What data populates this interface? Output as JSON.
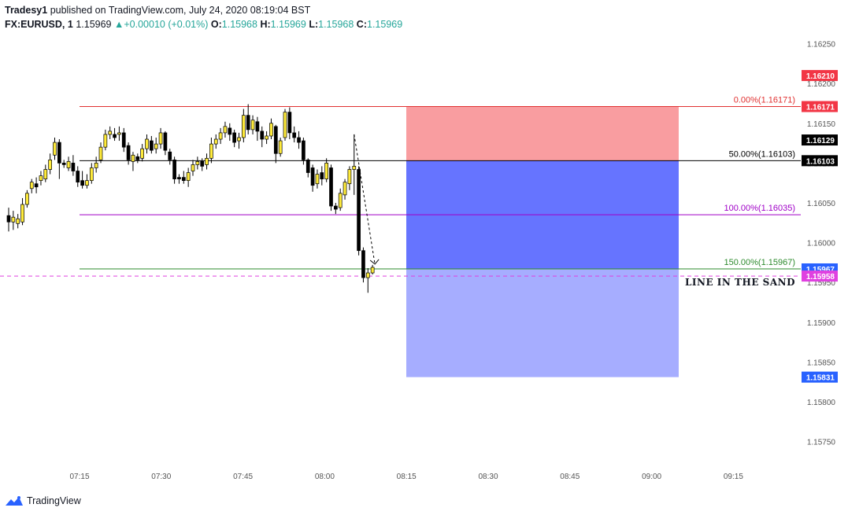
{
  "header": {
    "publisher": "Tradesy1",
    "published_text": " published on TradingView.com, July 24, 2020 08:19:04 BST",
    "symbol": "FX:EURUSD, 1",
    "last": "1.15969",
    "change_arrow": "▲",
    "change": "+0.00010 (+0.01%)",
    "o_label": "O:",
    "o_value": "1.15968",
    "h_label": "H:",
    "h_value": "1.15969",
    "l_label": "L:",
    "l_value": "1.15968",
    "c_label": "C:",
    "c_value": "1.15969"
  },
  "footer": {
    "brand": "TradingView",
    "logo_icon": "tradingview-logo-icon"
  },
  "colors": {
    "up_candle": "#ffeb3b",
    "down_candle": "#000000",
    "stop_zone": "#f77c80",
    "target_zone": "#3b4dff",
    "target_zone_light": "#7c86ff"
  },
  "chart_data": {
    "type": "candlestick",
    "symbol": "FX:EURUSD",
    "interval": "1",
    "y_ticks": [
      "1.16250",
      "1.16200",
      "1.16150",
      "1.16100",
      "1.16050",
      "1.16000",
      "1.15950",
      "1.15900",
      "1.15850",
      "1.15800",
      "1.15750"
    ],
    "x_ticks": [
      "07:15",
      "07:30",
      "07:45",
      "08:00",
      "08:15",
      "08:30",
      "08:45",
      "09:00",
      "09:15"
    ],
    "ylim": [
      1.15718,
      1.16298
    ],
    "candles": [
      {
        "o": 1.16034,
        "c": 1.16026,
        "h": 1.16044,
        "l": 1.16014
      },
      {
        "o": 1.16026,
        "c": 1.16032,
        "h": 1.1604,
        "l": 1.16016
      },
      {
        "o": 1.16024,
        "c": 1.1603,
        "h": 1.16036,
        "l": 1.16018
      },
      {
        "o": 1.16026,
        "c": 1.16048,
        "h": 1.16056,
        "l": 1.16022
      },
      {
        "o": 1.16048,
        "c": 1.16062,
        "h": 1.16066,
        "l": 1.16044
      },
      {
        "o": 1.16068,
        "c": 1.16076,
        "h": 1.1608,
        "l": 1.16062
      },
      {
        "o": 1.16074,
        "c": 1.1607,
        "h": 1.16082,
        "l": 1.16062
      },
      {
        "o": 1.16078,
        "c": 1.16084,
        "h": 1.1609,
        "l": 1.16072
      },
      {
        "o": 1.1608,
        "c": 1.16092,
        "h": 1.16098,
        "l": 1.16076
      },
      {
        "o": 1.16092,
        "c": 1.16104,
        "h": 1.16112,
        "l": 1.16086
      },
      {
        "o": 1.1611,
        "c": 1.16126,
        "h": 1.16132,
        "l": 1.16104
      },
      {
        "o": 1.16126,
        "c": 1.161,
        "h": 1.1613,
        "l": 1.1608
      },
      {
        "o": 1.161,
        "c": 1.16098,
        "h": 1.16104,
        "l": 1.16094
      },
      {
        "o": 1.16094,
        "c": 1.16102,
        "h": 1.16108,
        "l": 1.1609
      },
      {
        "o": 1.161,
        "c": 1.1609,
        "h": 1.1611,
        "l": 1.16084
      },
      {
        "o": 1.1609,
        "c": 1.16076,
        "h": 1.16096,
        "l": 1.1607
      },
      {
        "o": 1.16078,
        "c": 1.16072,
        "h": 1.1609,
        "l": 1.16068
      },
      {
        "o": 1.16072,
        "c": 1.16078,
        "h": 1.16086,
        "l": 1.16068
      },
      {
        "o": 1.16078,
        "c": 1.16094,
        "h": 1.161,
        "l": 1.16074
      },
      {
        "o": 1.16094,
        "c": 1.161,
        "h": 1.16108,
        "l": 1.16088
      },
      {
        "o": 1.16104,
        "c": 1.1612,
        "h": 1.16126,
        "l": 1.161
      },
      {
        "o": 1.1612,
        "c": 1.16136,
        "h": 1.16142,
        "l": 1.16116
      },
      {
        "o": 1.16136,
        "c": 1.1614,
        "h": 1.16146,
        "l": 1.1613
      },
      {
        "o": 1.16136,
        "c": 1.16132,
        "h": 1.16144,
        "l": 1.16128
      },
      {
        "o": 1.16136,
        "c": 1.16138,
        "h": 1.16146,
        "l": 1.16128
      },
      {
        "o": 1.16138,
        "c": 1.1612,
        "h": 1.16144,
        "l": 1.16114
      },
      {
        "o": 1.16122,
        "c": 1.16104,
        "h": 1.16126,
        "l": 1.16098
      },
      {
        "o": 1.16102,
        "c": 1.1611,
        "h": 1.16114,
        "l": 1.1609
      },
      {
        "o": 1.16108,
        "c": 1.16104,
        "h": 1.16112,
        "l": 1.161
      },
      {
        "o": 1.16106,
        "c": 1.16118,
        "h": 1.16124,
        "l": 1.16102
      },
      {
        "o": 1.16118,
        "c": 1.1613,
        "h": 1.16136,
        "l": 1.16112
      },
      {
        "o": 1.16128,
        "c": 1.16116,
        "h": 1.16134,
        "l": 1.16112
      },
      {
        "o": 1.16118,
        "c": 1.16124,
        "h": 1.16132,
        "l": 1.16112
      },
      {
        "o": 1.16124,
        "c": 1.16138,
        "h": 1.16144,
        "l": 1.16118
      },
      {
        "o": 1.16138,
        "c": 1.16116,
        "h": 1.1614,
        "l": 1.1611
      },
      {
        "o": 1.16114,
        "c": 1.16104,
        "h": 1.16118,
        "l": 1.16098
      },
      {
        "o": 1.16104,
        "c": 1.1608,
        "h": 1.16108,
        "l": 1.16074
      },
      {
        "o": 1.16082,
        "c": 1.1608,
        "h": 1.16086,
        "l": 1.16074
      },
      {
        "o": 1.16082,
        "c": 1.16078,
        "h": 1.1609,
        "l": 1.16074
      },
      {
        "o": 1.16078,
        "c": 1.16088,
        "h": 1.16094,
        "l": 1.1607
      },
      {
        "o": 1.1609,
        "c": 1.16098,
        "h": 1.16104,
        "l": 1.16084
      },
      {
        "o": 1.16098,
        "c": 1.16102,
        "h": 1.16108,
        "l": 1.16092
      },
      {
        "o": 1.16102,
        "c": 1.16096,
        "h": 1.16106,
        "l": 1.1609
      },
      {
        "o": 1.16098,
        "c": 1.16106,
        "h": 1.16112,
        "l": 1.16092
      },
      {
        "o": 1.16106,
        "c": 1.16124,
        "h": 1.16132,
        "l": 1.161
      },
      {
        "o": 1.16124,
        "c": 1.1613,
        "h": 1.16136,
        "l": 1.16118
      },
      {
        "o": 1.1613,
        "c": 1.16138,
        "h": 1.16144,
        "l": 1.16124
      },
      {
        "o": 1.16138,
        "c": 1.16146,
        "h": 1.16152,
        "l": 1.16132
      },
      {
        "o": 1.16144,
        "c": 1.16136,
        "h": 1.1615,
        "l": 1.16128
      },
      {
        "o": 1.16138,
        "c": 1.16126,
        "h": 1.16142,
        "l": 1.1612
      },
      {
        "o": 1.16128,
        "c": 1.16132,
        "h": 1.16138,
        "l": 1.16118
      },
      {
        "o": 1.16132,
        "c": 1.1616,
        "h": 1.16168,
        "l": 1.16126
      },
      {
        "o": 1.1616,
        "c": 1.16142,
        "h": 1.16174,
        "l": 1.16136
      },
      {
        "o": 1.16142,
        "c": 1.16154,
        "h": 1.1616,
        "l": 1.16136
      },
      {
        "o": 1.16152,
        "c": 1.1614,
        "h": 1.16158,
        "l": 1.16128
      },
      {
        "o": 1.1614,
        "c": 1.1613,
        "h": 1.16146,
        "l": 1.1612
      },
      {
        "o": 1.1613,
        "c": 1.16134,
        "h": 1.1614,
        "l": 1.16124
      },
      {
        "o": 1.16134,
        "c": 1.1615,
        "h": 1.16156,
        "l": 1.1613
      },
      {
        "o": 1.16146,
        "c": 1.16112,
        "h": 1.16148,
        "l": 1.161
      },
      {
        "o": 1.16112,
        "c": 1.16128,
        "h": 1.16132,
        "l": 1.16108
      },
      {
        "o": 1.16132,
        "c": 1.16164,
        "h": 1.16168,
        "l": 1.16128
      },
      {
        "o": 1.16164,
        "c": 1.16138,
        "h": 1.1617,
        "l": 1.1613
      },
      {
        "o": 1.16138,
        "c": 1.16132,
        "h": 1.16146,
        "l": 1.16126
      },
      {
        "o": 1.16132,
        "c": 1.16126,
        "h": 1.1614,
        "l": 1.16118
      },
      {
        "o": 1.16128,
        "c": 1.16104,
        "h": 1.16132,
        "l": 1.16098
      },
      {
        "o": 1.16104,
        "c": 1.16088,
        "h": 1.16106,
        "l": 1.16082
      },
      {
        "o": 1.16094,
        "c": 1.16072,
        "h": 1.16098,
        "l": 1.16064
      },
      {
        "o": 1.16074,
        "c": 1.16086,
        "h": 1.16092,
        "l": 1.16068
      },
      {
        "o": 1.16088,
        "c": 1.1608,
        "h": 1.16096,
        "l": 1.16072
      },
      {
        "o": 1.1608,
        "c": 1.161,
        "h": 1.16106,
        "l": 1.16076
      },
      {
        "o": 1.16094,
        "c": 1.16046,
        "h": 1.16098,
        "l": 1.1604
      },
      {
        "o": 1.16046,
        "c": 1.16042,
        "h": 1.1605,
        "l": 1.16036
      },
      {
        "o": 1.16044,
        "c": 1.16062,
        "h": 1.16068,
        "l": 1.1604
      },
      {
        "o": 1.1606,
        "c": 1.16076,
        "h": 1.1608,
        "l": 1.16054
      },
      {
        "o": 1.16074,
        "c": 1.16092,
        "h": 1.16096,
        "l": 1.16066
      },
      {
        "o": 1.16092,
        "c": 1.16096,
        "h": 1.16136,
        "l": 1.1606
      },
      {
        "o": 1.16092,
        "c": 1.1599,
        "h": 1.16096,
        "l": 1.15984
      },
      {
        "o": 1.1599,
        "c": 1.15956,
        "h": 1.15994,
        "l": 1.1595
      },
      {
        "o": 1.15956,
        "c": 1.15962,
        "h": 1.15968,
        "l": 1.15937
      },
      {
        "o": 1.15962,
        "c": 1.15969,
        "h": 1.15972,
        "l": 1.1596
      }
    ],
    "horizontal_lines": [
      {
        "price": 1.16171,
        "color": "#e03030",
        "text": "0.00%(1.16171)"
      },
      {
        "price": 1.16103,
        "color": "#000000",
        "text": "50.00%(1.16103)"
      },
      {
        "price": 1.16035,
        "color": "#a000c8",
        "text": "100.00%(1.16035)"
      },
      {
        "price": 1.15967,
        "color": "#2e8b2e",
        "text": "150.00%(1.15967)"
      }
    ],
    "sand_line": {
      "price": 1.15958,
      "color": "#e040e0",
      "text": "LINE IN THE SAND"
    },
    "position": {
      "stop": 1.16171,
      "entry": 1.16103,
      "target": 1.15831
    },
    "price_tags": [
      {
        "price": 1.1621,
        "label": "1.16210",
        "color": "#f23645"
      },
      {
        "price": 1.16171,
        "label": "1.16171",
        "color": "#f23645"
      },
      {
        "price": 1.16129,
        "label": "1.16129",
        "color": "#000000"
      },
      {
        "price": 1.16103,
        "label": "1.16103",
        "color": "#000000"
      },
      {
        "price": 1.15967,
        "label": "1.15967",
        "color": "#2962ff"
      },
      {
        "price": 1.15958,
        "label": "1.15958",
        "color": "#e040e0"
      },
      {
        "price": 1.15831,
        "label": "1.15831",
        "color": "#2962ff"
      }
    ],
    "grid": false
  }
}
